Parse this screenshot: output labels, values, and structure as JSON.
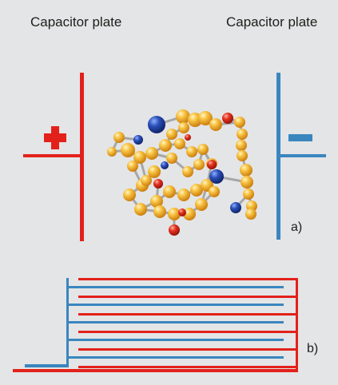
{
  "labels": {
    "left_plate": "Capacitor plate",
    "right_plate": "Capacitor plate",
    "panel_a": "a)",
    "panel_b": "b)"
  },
  "signs": {
    "positive": "+",
    "negative": "−"
  },
  "colors": {
    "background": "#e4e5e6",
    "positive_plate": "#e3211b",
    "negative_plate": "#3a86bf",
    "atom_gold": "#f2a31b",
    "atom_blue": "#1e3e95",
    "atom_red": "#d3231b",
    "bond": "#a7a7a7"
  },
  "molecule": {
    "atoms_gold": 44,
    "atoms_blue": 5,
    "atoms_red": 6
  },
  "interdigitated": {
    "finger_pairs": 5
  }
}
